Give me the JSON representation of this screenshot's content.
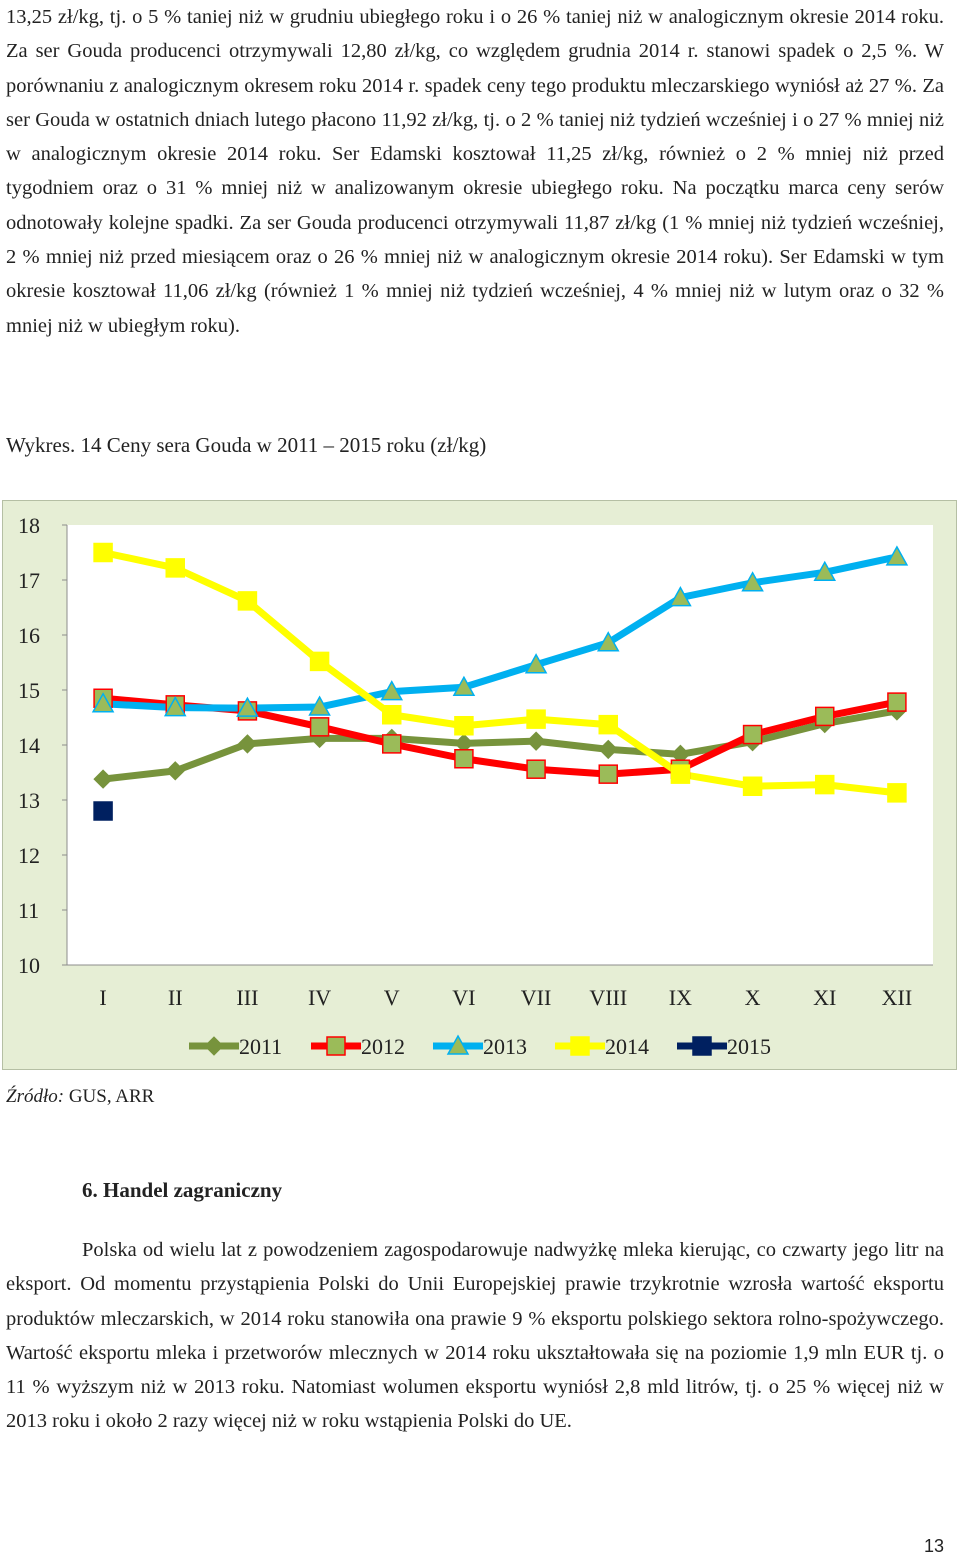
{
  "doc": {
    "para_top": "13,25 zł/kg, tj. o 5 % taniej niż w grudniu ubiegłego roku i o 26 % taniej niż w analogicznym okresie 2014 roku. Za ser Gouda producenci otrzymywali 12,80 zł/kg, co względem grudnia 2014 r. stanowi spadek o 2,5 %. W porównaniu z analogicznym okresem roku 2014 r. spadek ceny tego produktu mleczarskiego wyniósł aż 27 %. Za ser Gouda w ostatnich dniach lutego płacono 11,92 zł/kg, tj. o 2 % taniej niż tydzień wcześniej i o 27 % mniej niż w analogicznym okresie 2014 roku. Ser Edamski kosztował 11,25 zł/kg, również o 2 % mniej niż przed tygodniem oraz o 31 % mniej niż w analizowanym okresie ubiegłego roku. Na początku marca ceny serów odnotowały kolejne spadki. Za ser Gouda producenci otrzymywali 11,87 zł/kg (1 % mniej niż tydzień wcześniej, 2 % mniej niż przed miesiącem oraz o 26 % mniej niż w analogicznym okresie 2014 roku). Ser Edamski w tym okresie kosztował 11,06 zł/kg (również 1 % mniej niż tydzień wcześniej, 4 % mniej niż w lutym oraz o 32 % mniej niż w ubiegłym roku).",
    "chart_caption": "Wykres. 14 Ceny sera Gouda w 2011 – 2015 roku (zł/kg)",
    "source_label": "Źródło:",
    "source_text": " GUS, ARR",
    "section_heading": "6.   Handel zagraniczny",
    "para_bottom": "Polska od wielu lat z powodzeniem zagospodarowuje nadwyżkę mleka kierując, co czwarty jego litr na eksport. Od momentu przystąpienia Polski do Unii Europejskiej prawie trzykrotnie wzrosła wartość eksportu produktów mleczarskich, w 2014 roku stanowiła ona prawie 9 % eksportu polskiego sektora rolno-spożywczego. Wartość eksportu mleka i przetworów mlecznych w 2014 roku ukształtowała się na poziomie 1,9 mln EUR tj. o 11 % wyższym niż w 2013 roku. Natomiast wolumen eksportu wyniósł 2,8 mld litrów, tj. o 25 % więcej niż w 2013 roku i około 2 razy więcej niż w roku wstąpienia Polski do UE.",
    "page_number": "13"
  },
  "chart_data": {
    "type": "line",
    "title": "",
    "xlabel": "",
    "ylabel": "",
    "categories": [
      "I",
      "II",
      "III",
      "IV",
      "V",
      "VI",
      "VII",
      "VIII",
      "IX",
      "X",
      "XI",
      "XII"
    ],
    "ylim": [
      10,
      18
    ],
    "yticks": [
      "10",
      "11",
      "12",
      "13",
      "14",
      "15",
      "16",
      "17",
      "18"
    ],
    "grid": false,
    "legend_position": "bottom",
    "colors": {
      "plot_bg": "#ffffff",
      "chart_bg": "#e6eed5",
      "axis": "#8c8c8c"
    },
    "series": [
      {
        "name": "2011",
        "color": "#77933c",
        "marker": "diamond",
        "marker_fill": "#77933c",
        "values": [
          13.38,
          13.53,
          14.02,
          14.12,
          14.12,
          14.03,
          14.07,
          13.92,
          13.83,
          14.06,
          14.39,
          14.62
        ]
      },
      {
        "name": "2012",
        "color": "#ff0000",
        "marker": "square",
        "marker_fill": "#9bbb59",
        "values": [
          14.85,
          14.73,
          14.62,
          14.33,
          14.02,
          13.75,
          13.56,
          13.47,
          13.56,
          14.19,
          14.52,
          14.78
        ]
      },
      {
        "name": "2013",
        "color": "#00b0f0",
        "marker": "triangle",
        "marker_fill": "#9bbb59",
        "values": [
          14.75,
          14.68,
          14.67,
          14.69,
          14.97,
          15.05,
          15.46,
          15.86,
          16.68,
          16.95,
          17.14,
          17.42
        ]
      },
      {
        "name": "2014",
        "color": "#ffff00",
        "marker": "square",
        "marker_fill": "#ffff00",
        "values": [
          17.5,
          17.22,
          16.62,
          15.52,
          14.55,
          14.35,
          14.47,
          14.37,
          13.47,
          13.25,
          13.28,
          13.13
        ]
      },
      {
        "name": "2015",
        "color": "#002060",
        "marker": "square",
        "marker_fill": "#002060",
        "values": [
          12.8,
          null,
          null,
          null,
          null,
          null,
          null,
          null,
          null,
          null,
          null,
          null
        ]
      }
    ]
  }
}
